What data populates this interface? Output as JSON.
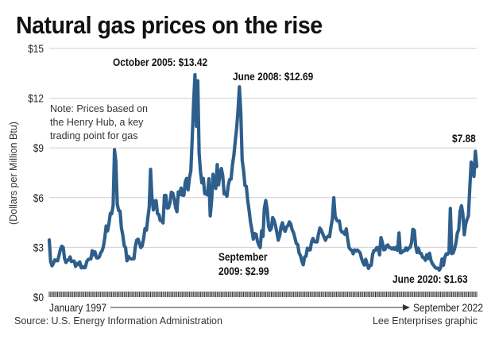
{
  "title": "Natural gas prices on the rise",
  "note": [
    "Note: Prices based on",
    "the Henry Hub, a key",
    "trading point for gas"
  ],
  "source": "Source: U.S. Energy Information Administration",
  "credit": "Lee Enterprises graphic",
  "colors": {
    "line": "#2e5f8c",
    "grid": "#d0d0d0"
  },
  "chart_data": {
    "type": "line",
    "title": "Natural gas prices on the rise",
    "ylabel": "(Dollars per Million Btu)",
    "xlabel": "",
    "ylim": [
      0,
      15
    ],
    "yticks": [
      0,
      3,
      6,
      9,
      12,
      15
    ],
    "ytick_labels": [
      "$0",
      "$3",
      "$6",
      "$9",
      "$12",
      "$15"
    ],
    "x_start_label": "January 1997",
    "x_end_label": "September 2022",
    "frequency": "monthly",
    "grid": true,
    "annotations": [
      {
        "text": "October 2005: $13.42",
        "lines": [
          "October 2005: $13.42"
        ]
      },
      {
        "text": "June 2008: $12.69",
        "lines": [
          "June 2008: $12.69"
        ]
      },
      {
        "text": "September 2009: $2.99",
        "lines": [
          "September",
          "2009: $2.99"
        ]
      },
      {
        "text": "June 2020: $1.63",
        "lines": [
          "June 2020: $1.63"
        ]
      },
      {
        "text": "$7.88",
        "lines": [
          "$7.88"
        ]
      }
    ],
    "series": [
      {
        "name": "Henry Hub natural gas price",
        "values": [
          3.45,
          2.15,
          1.89,
          2.03,
          2.25,
          2.2,
          2.19,
          2.49,
          2.88,
          3.07,
          3.01,
          2.35,
          2.09,
          2.23,
          2.24,
          2.43,
          2.14,
          2.17,
          2.17,
          1.85,
          2.03,
          1.96,
          2.13,
          1.77,
          1.85,
          1.77,
          1.79,
          2.15,
          2.26,
          2.3,
          2.31,
          2.8,
          2.55,
          2.73,
          2.37,
          2.36,
          2.42,
          2.66,
          2.79,
          3.04,
          3.59,
          4.29,
          3.99,
          4.43,
          5.06,
          5.02,
          5.52,
          8.9,
          8.17,
          5.61,
          5.23,
          5.19,
          4.19,
          3.72,
          3.11,
          2.97,
          2.19,
          2.46,
          2.34,
          2.3,
          2.32,
          2.32,
          3.03,
          3.43,
          3.5,
          3.26,
          2.99,
          3.09,
          3.55,
          4.13,
          4.04,
          4.74,
          5.43,
          7.71,
          5.93,
          5.26,
          5.81,
          5.82,
          5.03,
          4.99,
          4.62,
          4.63,
          4.47,
          6.13,
          6.14,
          5.37,
          5.39,
          5.71,
          6.33,
          6.27,
          5.93,
          5.41,
          5.15,
          6.35,
          6.17,
          6.58,
          6.15,
          6.14,
          6.96,
          7.16,
          6.47,
          7.18,
          7.63,
          9.53,
          11.75,
          13.42,
          10.3,
          13.05,
          8.69,
          7.54,
          6.89,
          7.16,
          6.25,
          6.21,
          6.17,
          7.14,
          4.9,
          5.85,
          7.41,
          6.73,
          6.55,
          8.0,
          6.77,
          7.41,
          7.76,
          7.35,
          6.22,
          6.29,
          6.08,
          6.74,
          7.1,
          7.11,
          7.99,
          8.54,
          9.41,
          10.18,
          11.27,
          12.69,
          11.09,
          8.26,
          7.67,
          6.74,
          6.68,
          5.82,
          5.24,
          4.52,
          4.06,
          3.5,
          3.83,
          3.8,
          3.38,
          3.14,
          2.99,
          4.01,
          3.66,
          5.35,
          5.83,
          5.32,
          4.29,
          4.03,
          4.14,
          4.8,
          4.63,
          4.32,
          3.89,
          3.43,
          3.71,
          4.25,
          4.49,
          4.09,
          3.97,
          4.24,
          4.31,
          4.54,
          4.42,
          4.06,
          3.9,
          3.57,
          3.24,
          3.17,
          2.67,
          2.5,
          2.17,
          1.95,
          2.43,
          2.46,
          2.95,
          2.84,
          2.85,
          3.32,
          3.54,
          3.34,
          3.33,
          3.33,
          3.81,
          4.17,
          4.04,
          3.83,
          3.62,
          3.43,
          3.62,
          3.68,
          3.64,
          4.24,
          4.71,
          6.0,
          4.9,
          4.66,
          4.58,
          4.59,
          4.05,
          3.91,
          3.92,
          3.78,
          4.12,
          3.48,
          2.99,
          2.87,
          2.83,
          2.61,
          2.85,
          2.78,
          2.84,
          2.77,
          2.66,
          2.34,
          2.09,
          1.93,
          2.28,
          1.99,
          1.73,
          1.92,
          1.92,
          2.59,
          2.82,
          2.82,
          2.99,
          2.98,
          2.55,
          3.59,
          3.3,
          2.85,
          2.88,
          3.1,
          3.15,
          2.98,
          2.98,
          2.9,
          2.98,
          2.88,
          3.01,
          2.82,
          3.87,
          2.67,
          2.69,
          2.8,
          2.8,
          2.97,
          2.83,
          2.96,
          3.0,
          3.28,
          4.09,
          4.04,
          3.11,
          2.69,
          2.95,
          2.65,
          2.64,
          2.4,
          2.37,
          2.22,
          2.56,
          2.33,
          2.65,
          2.22,
          2.02,
          1.91,
          1.79,
          1.74,
          1.75,
          1.63,
          1.77,
          2.3,
          1.92,
          2.39,
          2.61,
          2.59,
          2.71,
          5.35,
          2.62,
          2.66,
          2.91,
          3.26,
          3.84,
          4.07,
          5.16,
          5.51,
          5.05,
          3.76,
          4.38,
          4.69,
          4.9,
          6.6,
          8.14,
          7.7,
          7.28,
          8.8,
          7.88
        ]
      }
    ]
  }
}
